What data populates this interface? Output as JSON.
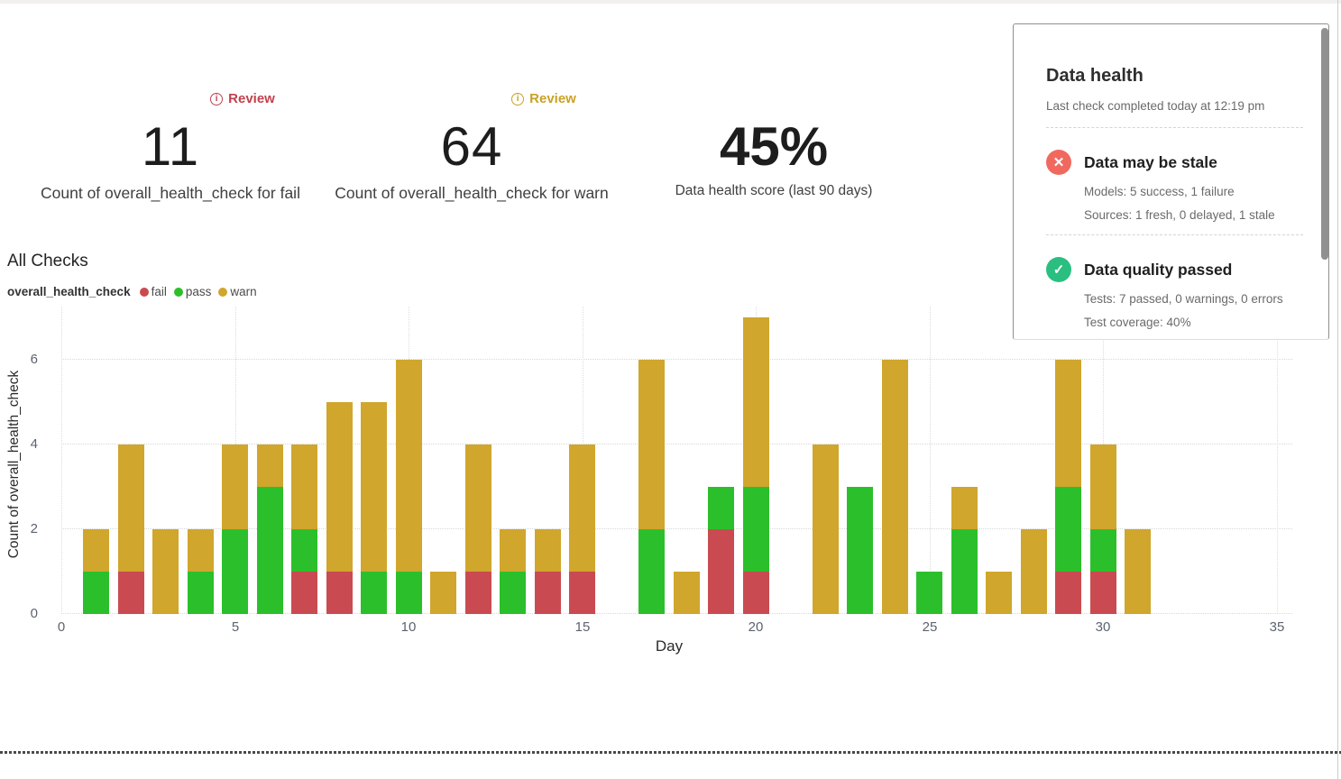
{
  "metrics": [
    {
      "id": "fail",
      "badge": {
        "label": "Review",
        "color": "#c2414d"
      },
      "value": "11",
      "caption": "Count of overall_health_check for fail"
    },
    {
      "id": "warn",
      "badge": {
        "label": "Review",
        "color": "#c9a227"
      },
      "value": "64",
      "caption": "Count of overall_health_check for warn"
    },
    {
      "id": "score",
      "value": "45%",
      "caption": "Data health score (last 90 days)"
    }
  ],
  "section": {
    "title": "All Checks"
  },
  "legend": {
    "series_label": "overall_health_check",
    "items": [
      {
        "label": "fail",
        "color": "#c94b51"
      },
      {
        "label": "pass",
        "color": "#2bc02b"
      },
      {
        "label": "warn",
        "color": "#d0a62c"
      }
    ]
  },
  "chart_data": {
    "type": "bar",
    "stacked": true,
    "title": "All Checks",
    "xlabel": "Day",
    "ylabel": "Count of overall_health_check",
    "xticks": [
      0,
      5,
      10,
      15,
      20,
      25,
      30,
      35
    ],
    "yticks": [
      0,
      2,
      4,
      6
    ],
    "xlim": [
      0,
      35.4
    ],
    "ylim": [
      0,
      7.26
    ],
    "grid": "dotted",
    "legend_position": "top-left",
    "series": [
      {
        "name": "fail",
        "color": "#c94b51"
      },
      {
        "name": "pass",
        "color": "#2bc02b"
      },
      {
        "name": "warn",
        "color": "#d0a62c"
      }
    ],
    "points": [
      {
        "day": 1,
        "fail": 0,
        "pass": 1,
        "warn": 1
      },
      {
        "day": 2,
        "fail": 1,
        "pass": 0,
        "warn": 3
      },
      {
        "day": 3,
        "fail": 0,
        "pass": 0,
        "warn": 2
      },
      {
        "day": 4,
        "fail": 0,
        "pass": 1,
        "warn": 1
      },
      {
        "day": 5,
        "fail": 0,
        "pass": 2,
        "warn": 2
      },
      {
        "day": 6,
        "fail": 0,
        "pass": 3,
        "warn": 1
      },
      {
        "day": 7,
        "fail": 1,
        "pass": 1,
        "warn": 2
      },
      {
        "day": 8,
        "fail": 1,
        "pass": 0,
        "warn": 4
      },
      {
        "day": 9,
        "fail": 0,
        "pass": 1,
        "warn": 4
      },
      {
        "day": 10,
        "fail": 0,
        "pass": 1,
        "warn": 5
      },
      {
        "day": 11,
        "fail": 0,
        "pass": 0,
        "warn": 1
      },
      {
        "day": 12,
        "fail": 1,
        "pass": 0,
        "warn": 3
      },
      {
        "day": 13,
        "fail": 0,
        "pass": 1,
        "warn": 1
      },
      {
        "day": 14,
        "fail": 1,
        "pass": 0,
        "warn": 1
      },
      {
        "day": 15,
        "fail": 1,
        "pass": 0,
        "warn": 3
      },
      {
        "day": 17,
        "fail": 0,
        "pass": 2,
        "warn": 4
      },
      {
        "day": 18,
        "fail": 0,
        "pass": 0,
        "warn": 1
      },
      {
        "day": 19,
        "fail": 2,
        "pass": 1,
        "warn": 0
      },
      {
        "day": 20,
        "fail": 1,
        "pass": 2,
        "warn": 4
      },
      {
        "day": 22,
        "fail": 0,
        "pass": 0,
        "warn": 4
      },
      {
        "day": 23,
        "fail": 0,
        "pass": 3,
        "warn": 0
      },
      {
        "day": 24,
        "fail": 0,
        "pass": 0,
        "warn": 6
      },
      {
        "day": 25,
        "fail": 0,
        "pass": 1,
        "warn": 0
      },
      {
        "day": 26,
        "fail": 0,
        "pass": 2,
        "warn": 1
      },
      {
        "day": 27,
        "fail": 0,
        "pass": 0,
        "warn": 1
      },
      {
        "day": 28,
        "fail": 0,
        "pass": 0,
        "warn": 2
      },
      {
        "day": 29,
        "fail": 1,
        "pass": 2,
        "warn": 3
      },
      {
        "day": 30,
        "fail": 1,
        "pass": 1,
        "warn": 2
      },
      {
        "day": 31,
        "fail": 0,
        "pass": 0,
        "warn": 2
      }
    ]
  },
  "panel": {
    "title": "Data health",
    "subtitle": "Last check completed today at 12:19 pm",
    "items": [
      {
        "status": "fail",
        "icon": "x",
        "icon_color": "#f0695f",
        "heading": "Data may be stale",
        "lines": [
          "Models: 5 success, 1 failure",
          "Sources: 1 fresh, 0 delayed, 1 stale"
        ]
      },
      {
        "status": "pass",
        "icon": "check",
        "icon_color": "#2abf81",
        "heading": "Data quality passed",
        "lines": [
          "Tests: 7 passed, 0 warnings, 0 errors",
          "Test coverage: 40%"
        ]
      }
    ]
  }
}
